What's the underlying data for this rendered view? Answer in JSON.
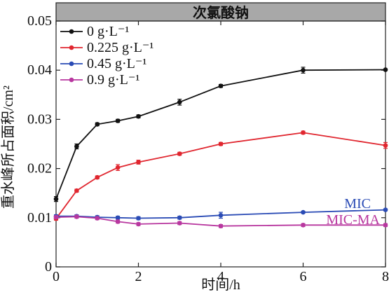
{
  "chart_data": {
    "type": "line",
    "title": "次氯酸钠",
    "xlabel": "时间/h",
    "ylabel": "重水峰所占面积/cm²",
    "xlim": [
      0,
      8
    ],
    "ylim": [
      0,
      0.05
    ],
    "x_ticks": [
      0,
      2,
      4,
      6,
      8
    ],
    "y_ticks": [
      0,
      0.01,
      0.02,
      0.03,
      0.04,
      0.05
    ],
    "x_tick_labels": [
      "0",
      "2",
      "4",
      "6",
      "8"
    ],
    "y_tick_labels": [
      "0",
      "0.01",
      "0.02",
      "0.03",
      "0.04",
      "0.05"
    ],
    "legend_position": "top-left",
    "grid": false,
    "x": [
      0,
      0.5,
      1,
      1.5,
      2,
      3,
      4,
      6,
      8
    ],
    "series": [
      {
        "name": "0 g·L⁻¹",
        "color": "#111111",
        "values": [
          0.0138,
          0.0245,
          0.029,
          0.0297,
          0.0306,
          0.0335,
          0.0368,
          0.04,
          0.0401
        ],
        "errors": [
          0.0005,
          0.0005,
          0.0003,
          0.0003,
          0.0003,
          0.0006,
          0.0003,
          0.0006,
          0.0001
        ]
      },
      {
        "name": "0.225 g·L⁻¹",
        "color": "#e0262f",
        "values": [
          0.0098,
          0.0155,
          0.0182,
          0.0202,
          0.0213,
          0.023,
          0.025,
          0.0273,
          0.0247
        ],
        "errors": [
          0.0003,
          0.0003,
          0.0003,
          0.0006,
          0.0004,
          0.0003,
          0.0003,
          0.0003,
          0.0006
        ]
      },
      {
        "name": "0.45 g·L⁻¹",
        "color": "#2a4bb5",
        "values": [
          0.0103,
          0.0103,
          0.0101,
          0.01,
          0.0099,
          0.01,
          0.0105,
          0.0111,
          0.0116
        ],
        "errors": [
          0.0003,
          0.0003,
          0.0003,
          0.0003,
          0.0003,
          0.0003,
          0.0006,
          0.0002,
          0.0002
        ]
      },
      {
        "name": "0.9 g·L⁻¹",
        "color": "#b8379f",
        "values": [
          0.0101,
          0.0102,
          0.0099,
          0.0092,
          0.0087,
          0.0089,
          0.0083,
          0.0085,
          0.0085
        ],
        "errors": [
          0.0003,
          0.0003,
          0.0003,
          0.0003,
          0.0003,
          0.0003,
          0.0003,
          0.0003,
          0.0003
        ]
      }
    ],
    "annotations": [
      {
        "text": "MIC",
        "color": "#2a4bb5"
      },
      {
        "text": "MIC-MA",
        "color": "#b8379f"
      }
    ]
  }
}
